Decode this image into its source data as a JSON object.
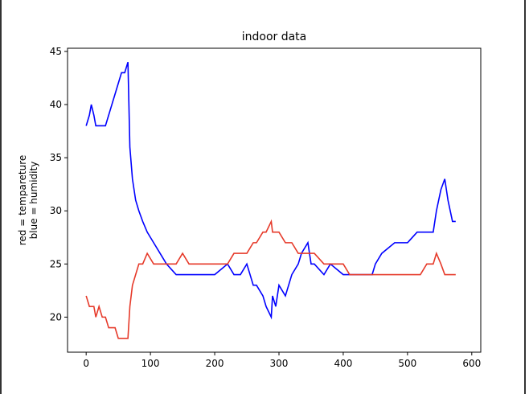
{
  "chart_data": {
    "type": "line",
    "title": "indoor data",
    "ylabel": [
      "red = tempareture",
      "blue = humidity"
    ],
    "x": [
      0,
      5,
      8,
      12,
      15,
      20,
      25,
      30,
      35,
      40,
      45,
      50,
      55,
      60,
      65,
      68,
      72,
      77,
      82,
      88,
      95,
      105,
      115,
      125,
      140,
      150,
      160,
      200,
      220,
      230,
      240,
      250,
      260,
      265,
      275,
      280,
      288,
      290,
      295,
      300,
      310,
      320,
      330,
      335,
      345,
      350,
      355,
      370,
      380,
      400,
      410,
      445,
      450,
      460,
      480,
      500,
      515,
      520,
      530,
      540,
      545,
      552,
      558,
      563,
      570,
      575
    ],
    "series": [
      {
        "color": "#0000ff",
        "values": [
          38,
          39,
          40,
          39,
          38,
          38,
          38,
          38,
          39,
          40,
          41,
          42,
          43,
          43,
          44,
          36,
          33,
          31,
          30,
          29,
          28,
          27,
          26,
          25,
          24,
          24,
          24,
          24,
          25,
          24,
          24,
          25,
          23,
          23,
          22,
          21,
          20,
          22,
          21,
          23,
          22,
          24,
          25,
          26,
          27,
          25,
          25,
          24,
          25,
          24,
          24,
          24,
          25,
          26,
          27,
          27,
          28,
          28,
          28,
          28,
          30,
          32,
          33,
          31,
          29,
          29
        ]
      },
      {
        "color": "#e63a2a",
        "values": [
          22,
          21,
          21,
          21,
          20,
          21,
          20,
          20,
          19,
          19,
          19,
          18,
          18,
          18,
          18,
          21,
          23,
          24,
          25,
          25,
          26,
          25,
          25,
          25,
          25,
          26,
          25,
          25,
          25,
          26,
          26,
          26,
          27,
          27,
          28,
          28,
          29,
          28,
          28,
          28,
          27,
          27,
          26,
          26,
          26,
          26,
          26,
          25,
          25,
          25,
          24,
          24,
          24,
          24,
          24,
          24,
          24,
          24,
          25,
          25,
          26,
          25,
          24,
          24,
          24,
          24
        ]
      }
    ],
    "xlim": [
      -29,
      614
    ],
    "ylim": [
      16.7,
      45.3
    ],
    "xticks": [
      0,
      100,
      200,
      300,
      400,
      500,
      600
    ],
    "yticks": [
      20,
      25,
      30,
      35,
      40,
      45
    ]
  }
}
